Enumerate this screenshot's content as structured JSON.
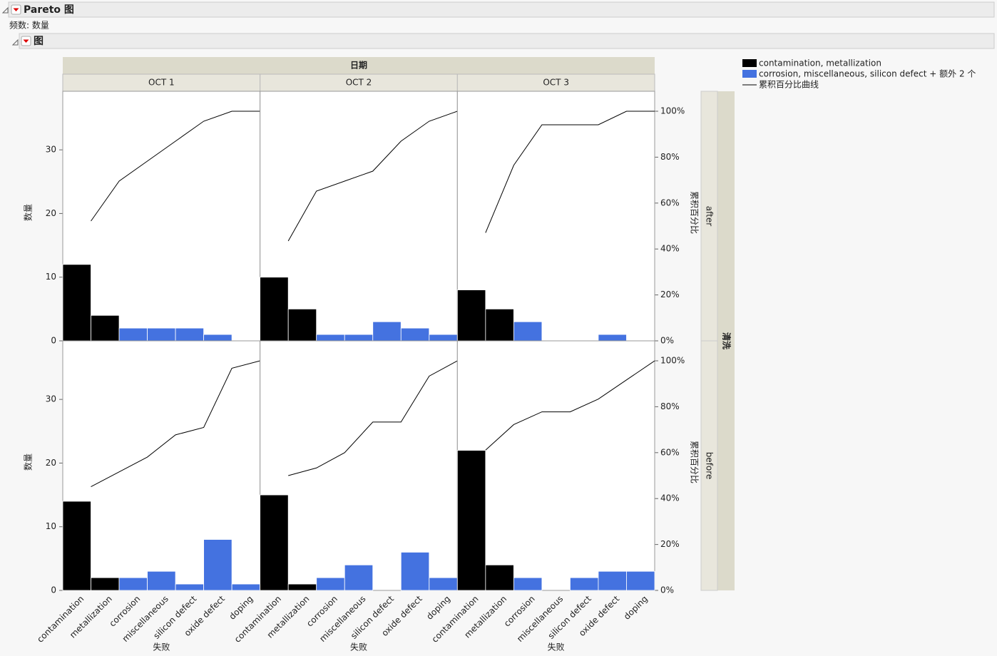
{
  "header": {
    "title": "Pareto 图",
    "frequency": "频数: 数量",
    "section": "图"
  },
  "chart_data": {
    "type": "pareto",
    "column_group_label": "日期",
    "row_group_label": "清洗",
    "columns": [
      "OCT 1",
      "OCT 2",
      "OCT 3"
    ],
    "rows": [
      "after",
      "before"
    ],
    "x_label": "失败",
    "y_label": "数量",
    "y2_label": "累积百分比",
    "categories": [
      "contamination",
      "metallization",
      "corrosion",
      "miscellaneous",
      "silicon defect",
      "oxide defect",
      "doping"
    ],
    "colors": [
      "#000000",
      "#000000",
      "#4472e0",
      "#4472e0",
      "#4472e0",
      "#4472e0",
      "#4472e0"
    ],
    "series": [
      {
        "name": "contamination, metallization",
        "color": "#000000"
      },
      {
        "name": "corrosion, miscellaneous, silicon defect + 额外 2 个",
        "color": "#4472e0"
      }
    ],
    "cumulative_line": {
      "name": "累积百分比曲线",
      "color": "#000000"
    },
    "panels": [
      [
        [
          12,
          4,
          2,
          2,
          2,
          1,
          0
        ],
        [
          10,
          5,
          1,
          1,
          3,
          2,
          1
        ],
        [
          8,
          5,
          3,
          0,
          0,
          1,
          0
        ]
      ],
      [
        [
          14,
          2,
          2,
          3,
          1,
          8,
          1
        ],
        [
          15,
          1,
          2,
          4,
          0,
          6,
          2
        ],
        [
          22,
          4,
          2,
          0,
          2,
          3,
          3
        ]
      ]
    ],
    "ylim": [
      0,
      39.2
    ],
    "yticks": [
      0,
      10,
      20,
      30
    ],
    "y2lim": [
      0,
      108.7
    ],
    "y2ticks": [
      {
        "value": 0,
        "label": "0%"
      },
      {
        "value": 20,
        "label": "20%"
      },
      {
        "value": 40,
        "label": "40%"
      },
      {
        "value": 60,
        "label": "60%"
      },
      {
        "value": 80,
        "label": "80%"
      },
      {
        "value": 100,
        "label": "100%"
      }
    ]
  }
}
